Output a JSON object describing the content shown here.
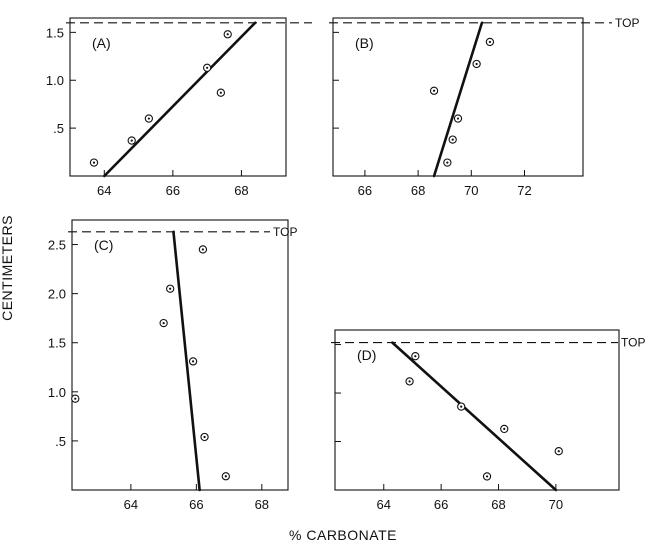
{
  "figure": {
    "ylabel": "CENTIMETERS",
    "xlabel": "% CARBONATE",
    "top_label": "TOP",
    "line_color": "#111111"
  },
  "chart_data": [
    {
      "panel": "(A)",
      "type": "scatter",
      "xlim": [
        63,
        69.3
      ],
      "ylim": [
        0,
        1.65
      ],
      "xticks": [
        64,
        66,
        68
      ],
      "yticks": [
        0.5,
        1.0,
        1.5
      ],
      "ytick_labels": [
        ".5",
        "1.0",
        "1.5"
      ],
      "top_y": 1.6,
      "show_top_label": false,
      "points": [
        [
          63.7,
          0.14
        ],
        [
          64.8,
          0.37
        ],
        [
          65.3,
          0.6
        ],
        [
          67.0,
          1.13
        ],
        [
          67.4,
          0.87
        ],
        [
          67.6,
          1.48
        ]
      ],
      "fit_line": [
        [
          64.0,
          0.0
        ],
        [
          68.4,
          1.6
        ]
      ]
    },
    {
      "panel": "(B)",
      "type": "scatter",
      "xlim": [
        64.8,
        74.2
      ],
      "ylim": [
        0,
        1.65
      ],
      "xticks": [
        66,
        68,
        70,
        72
      ],
      "yticks": [
        0.5,
        1.0,
        1.5
      ],
      "ytick_labels": [
        "",
        "",
        ""
      ],
      "top_y": 1.6,
      "show_top_label": true,
      "points": [
        [
          68.6,
          0.89
        ],
        [
          69.1,
          0.14
        ],
        [
          69.3,
          0.38
        ],
        [
          69.5,
          0.6
        ],
        [
          70.2,
          1.17
        ],
        [
          70.7,
          1.4
        ]
      ],
      "fit_line": [
        [
          68.6,
          0.0
        ],
        [
          70.4,
          1.6
        ]
      ]
    },
    {
      "panel": "(C)",
      "type": "scatter",
      "xlim": [
        62.2,
        68.8
      ],
      "ylim": [
        0,
        2.75
      ],
      "xticks": [
        64,
        66,
        68
      ],
      "yticks": [
        0.5,
        1.0,
        1.5,
        2.0,
        2.5
      ],
      "ytick_labels": [
        ".5",
        "1.0",
        "1.5",
        "2.0",
        "2.5"
      ],
      "top_y": 2.63,
      "show_top_label": true,
      "points": [
        [
          62.3,
          0.93
        ],
        [
          65.0,
          1.7
        ],
        [
          65.2,
          2.05
        ],
        [
          65.9,
          1.31
        ],
        [
          66.2,
          2.45
        ],
        [
          66.25,
          0.54
        ],
        [
          66.9,
          0.14
        ]
      ],
      "fit_line": [
        [
          65.3,
          2.63
        ],
        [
          66.1,
          0.0
        ]
      ]
    },
    {
      "panel": "(D)",
      "type": "scatter",
      "xlim": [
        62.3,
        72.2
      ],
      "ylim": [
        0,
        1.65
      ],
      "xticks": [
        64,
        66,
        68,
        70
      ],
      "yticks": [
        0.5,
        1.0,
        1.5
      ],
      "ytick_labels": [
        "",
        "",
        ""
      ],
      "top_y": 1.52,
      "show_top_label": true,
      "points": [
        [
          64.9,
          1.12
        ],
        [
          65.1,
          1.38
        ],
        [
          66.7,
          0.86
        ],
        [
          67.6,
          0.14
        ],
        [
          68.2,
          0.63
        ],
        [
          70.1,
          0.4
        ]
      ],
      "fit_line": [
        [
          64.3,
          1.52
        ],
        [
          70.0,
          0.0
        ]
      ]
    }
  ]
}
